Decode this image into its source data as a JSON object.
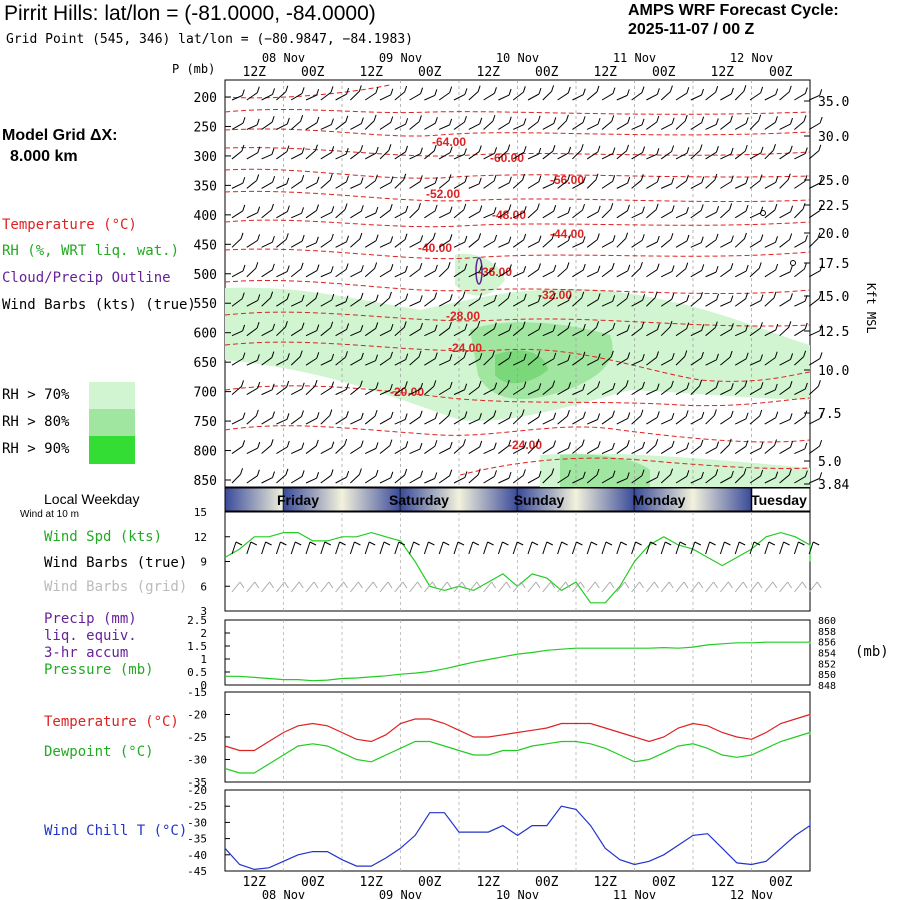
{
  "header": {
    "title": "Pirrit Hills:  lat/lon = (-81.0000, -84.0000)",
    "subtitle": "Grid Point (545, 346) lat/lon = (−80.9847, −84.1983)",
    "cycle_label": "AMPS WRF Forecast Cycle:",
    "cycle_value": "2025-11-07 / 00  Z"
  },
  "legend": {
    "model_grid_label": "Model Grid ΔX:",
    "model_grid_value": "8.000 km",
    "temperature": "Temperature (°C)",
    "rh": "RH (%, WRT liq. wat.)",
    "cloud": "Cloud/Precip Outline",
    "wind": "Wind Barbs (kts) (true)",
    "rh70": "RH > 70%",
    "rh80": "RH > 80%",
    "rh90": "RH > 90%",
    "colors": {
      "temperature": "#dd2222",
      "rh": "#22aa22",
      "cloud": "#662299",
      "wind": "#000000",
      "rh70": "#d0f5d0",
      "rh80": "#a0e6a0",
      "rh90": "#33dd33"
    }
  },
  "left_labels": {
    "local_weekday": "Local Weekday",
    "wind_at": "Wind at 10 m",
    "wind_spd": "Wind Spd (kts)",
    "wind_barbs_true": "Wind Barbs (true)",
    "wind_barbs_grid": "Wind Barbs (grid)",
    "precip": "Precip (mm)",
    "liq": "liq. equiv.",
    "accum": "3-hr accum",
    "pressure": "Pressure (mb)",
    "temperature": "Temperature (°C)",
    "dewpoint": "Dewpoint (°C)",
    "wind_chill": "Wind Chill T (°C)"
  },
  "axes": {
    "p_label": "P (mb)",
    "kft_label": "Kft MSL",
    "mb_label": "(mb)",
    "hour_ticks": [
      "12Z",
      "00Z",
      "12Z",
      "00Z",
      "12Z",
      "00Z",
      "12Z",
      "00Z",
      "12Z",
      "00Z"
    ],
    "date_ticks": [
      "08 Nov",
      "09 Nov",
      "10 Nov",
      "11 Nov",
      "12 Nov"
    ],
    "weekdays": [
      "Friday",
      "Saturday",
      "Sunday",
      "Monday",
      "Tuesday"
    ]
  },
  "chart_data": [
    {
      "type": "heatmap",
      "title": "Pirrit Hills:  lat/lon = (-81.0000, -84.0000)",
      "xlabel": "",
      "ylabel": "P (mb)",
      "y2label": "Kft MSL",
      "pressure_ticks": [
        200,
        250,
        300,
        350,
        400,
        450,
        500,
        550,
        600,
        650,
        700,
        750,
        800,
        850
      ],
      "height_ticks_kft": [
        "35.0",
        "30.0",
        "25.0",
        "22.5",
        "20.0",
        "17.5",
        "15.0",
        "12.5",
        "10.0",
        "7.5",
        "5.0",
        "3.84"
      ],
      "temperature_contour_labels": [
        "-64.00",
        "-60.00",
        "-56.00",
        "-52.00",
        "-48.00",
        "-44.00",
        "-40.00",
        "-36.00",
        "-32.00",
        "-28.00",
        "-24.00",
        "-20.00",
        "-24.00"
      ],
      "xlim": [
        0,
        120
      ],
      "ylim": [
        850,
        200
      ],
      "grid": true
    },
    {
      "type": "line",
      "series": [
        {
          "name": "Wind Spd (kts)",
          "values": [
            9.5,
            10.5,
            12,
            12,
            12.5,
            12.5,
            11.5,
            11.5,
            12,
            12,
            12.5,
            12,
            11.5,
            9,
            6,
            5.5,
            6,
            5.5,
            6.5,
            7.5,
            6,
            7.5,
            7,
            5.5,
            6.5,
            4,
            4,
            6,
            9,
            11,
            12,
            11,
            10.5,
            9.5,
            8.5,
            9.5,
            10.5,
            12,
            12.5,
            12,
            11,
            9
          ]
        }
      ],
      "x_hours": [
        0,
        3,
        6,
        9,
        12,
        15,
        18,
        21,
        24,
        27,
        30,
        33,
        36,
        39,
        42,
        45,
        48,
        51,
        54,
        57,
        60,
        63,
        66,
        69,
        72,
        75,
        78,
        81,
        84,
        87,
        90,
        93,
        96,
        99,
        102,
        105,
        108,
        111,
        114,
        117,
        120,
        123
      ],
      "ylim": [
        3,
        15
      ],
      "yticks": [
        3,
        6,
        9,
        12,
        15
      ]
    },
    {
      "type": "line",
      "precip_yticks": [
        0,
        0.5,
        1.0,
        1.5,
        2.0,
        2.5
      ],
      "pressure_yticks": [
        848,
        850,
        852,
        854,
        856,
        858,
        860
      ],
      "series": [
        {
          "name": "Pressure (mb)",
          "values": [
            849.6,
            849.6,
            849.4,
            849.2,
            849.0,
            849.0,
            848.8,
            848.9,
            849.2,
            849.3,
            849.5,
            849.7,
            850.0,
            850.2,
            850.5,
            851.0,
            851.6,
            852.2,
            852.7,
            853.2,
            853.7,
            854.0,
            854.4,
            854.6,
            854.8,
            854.8,
            854.8,
            854.8,
            854.8,
            854.8,
            854.9,
            854.8,
            855.0,
            855.4,
            855.6,
            855.8,
            855.8,
            855.9,
            855.9,
            855.9,
            855.9,
            855.6
          ]
        }
      ],
      "x_hours": [
        0,
        3,
        6,
        9,
        12,
        15,
        18,
        21,
        24,
        27,
        30,
        33,
        36,
        39,
        42,
        45,
        48,
        51,
        54,
        57,
        60,
        63,
        66,
        69,
        72,
        75,
        78,
        81,
        84,
        87,
        90,
        93,
        96,
        99,
        102,
        105,
        108,
        111,
        114,
        117,
        120,
        123
      ]
    },
    {
      "type": "line",
      "ylim": [
        -35,
        -15
      ],
      "yticks": [
        -35,
        -30,
        -25,
        -20,
        -15
      ],
      "series": [
        {
          "name": "Temperature (°C)",
          "values": [
            -27,
            -28,
            -28,
            -26,
            -24,
            -22.5,
            -22,
            -22.5,
            -24,
            -25.5,
            -26,
            -24.5,
            -22,
            -21,
            -21,
            -22,
            -23.5,
            -25,
            -25,
            -24.5,
            -24,
            -23.5,
            -23,
            -22,
            -22,
            -22,
            -23,
            -24,
            -25,
            -26,
            -25,
            -23,
            -22,
            -22.5,
            -24,
            -25,
            -25.5,
            -24,
            -22,
            -21,
            -20,
            -20.5
          ],
          "color": "#dd2222"
        },
        {
          "name": "Dewpoint (°C)",
          "values": [
            -32,
            -33,
            -33,
            -31,
            -29,
            -27,
            -26.5,
            -27,
            -28.5,
            -30,
            -30.5,
            -29,
            -27.5,
            -26,
            -26,
            -27,
            -28,
            -29,
            -29,
            -28,
            -28,
            -27,
            -26.5,
            -26,
            -26,
            -26.5,
            -27.5,
            -29,
            -30.5,
            -30,
            -28.5,
            -27,
            -26.5,
            -27.5,
            -29,
            -29.5,
            -29,
            -27.5,
            -26,
            -25,
            -24,
            -24.5
          ],
          "color": "#22cc22"
        }
      ],
      "x_hours": [
        0,
        3,
        6,
        9,
        12,
        15,
        18,
        21,
        24,
        27,
        30,
        33,
        36,
        39,
        42,
        45,
        48,
        51,
        54,
        57,
        60,
        63,
        66,
        69,
        72,
        75,
        78,
        81,
        84,
        87,
        90,
        93,
        96,
        99,
        102,
        105,
        108,
        111,
        114,
        117,
        120,
        123
      ]
    },
    {
      "type": "line",
      "ylim": [
        -45,
        -20
      ],
      "yticks": [
        -45,
        -40,
        -35,
        -30,
        -25,
        -20
      ],
      "series": [
        {
          "name": "Wind Chill T (°C)",
          "values": [
            -38,
            -43,
            -44.5,
            -44,
            -42,
            -40,
            -39,
            -39,
            -41.5,
            -43.5,
            -43.5,
            -41,
            -38,
            -34,
            -27,
            -27,
            -33,
            -33,
            -33,
            -31,
            -34,
            -31,
            -31,
            -25,
            -26,
            -31,
            -38,
            -41.5,
            -43,
            -42,
            -40,
            -37,
            -34,
            -33.5,
            -38,
            -42.5,
            -43,
            -42,
            -38,
            -34,
            -31,
            -29.5
          ],
          "color": "#2233cc"
        }
      ],
      "x_hours": [
        0,
        3,
        6,
        9,
        12,
        15,
        18,
        21,
        24,
        27,
        30,
        33,
        36,
        39,
        42,
        45,
        48,
        51,
        54,
        57,
        60,
        63,
        66,
        69,
        72,
        75,
        78,
        81,
        84,
        87,
        90,
        93,
        96,
        99,
        102,
        105,
        108,
        111,
        114,
        117,
        120,
        123
      ]
    }
  ]
}
